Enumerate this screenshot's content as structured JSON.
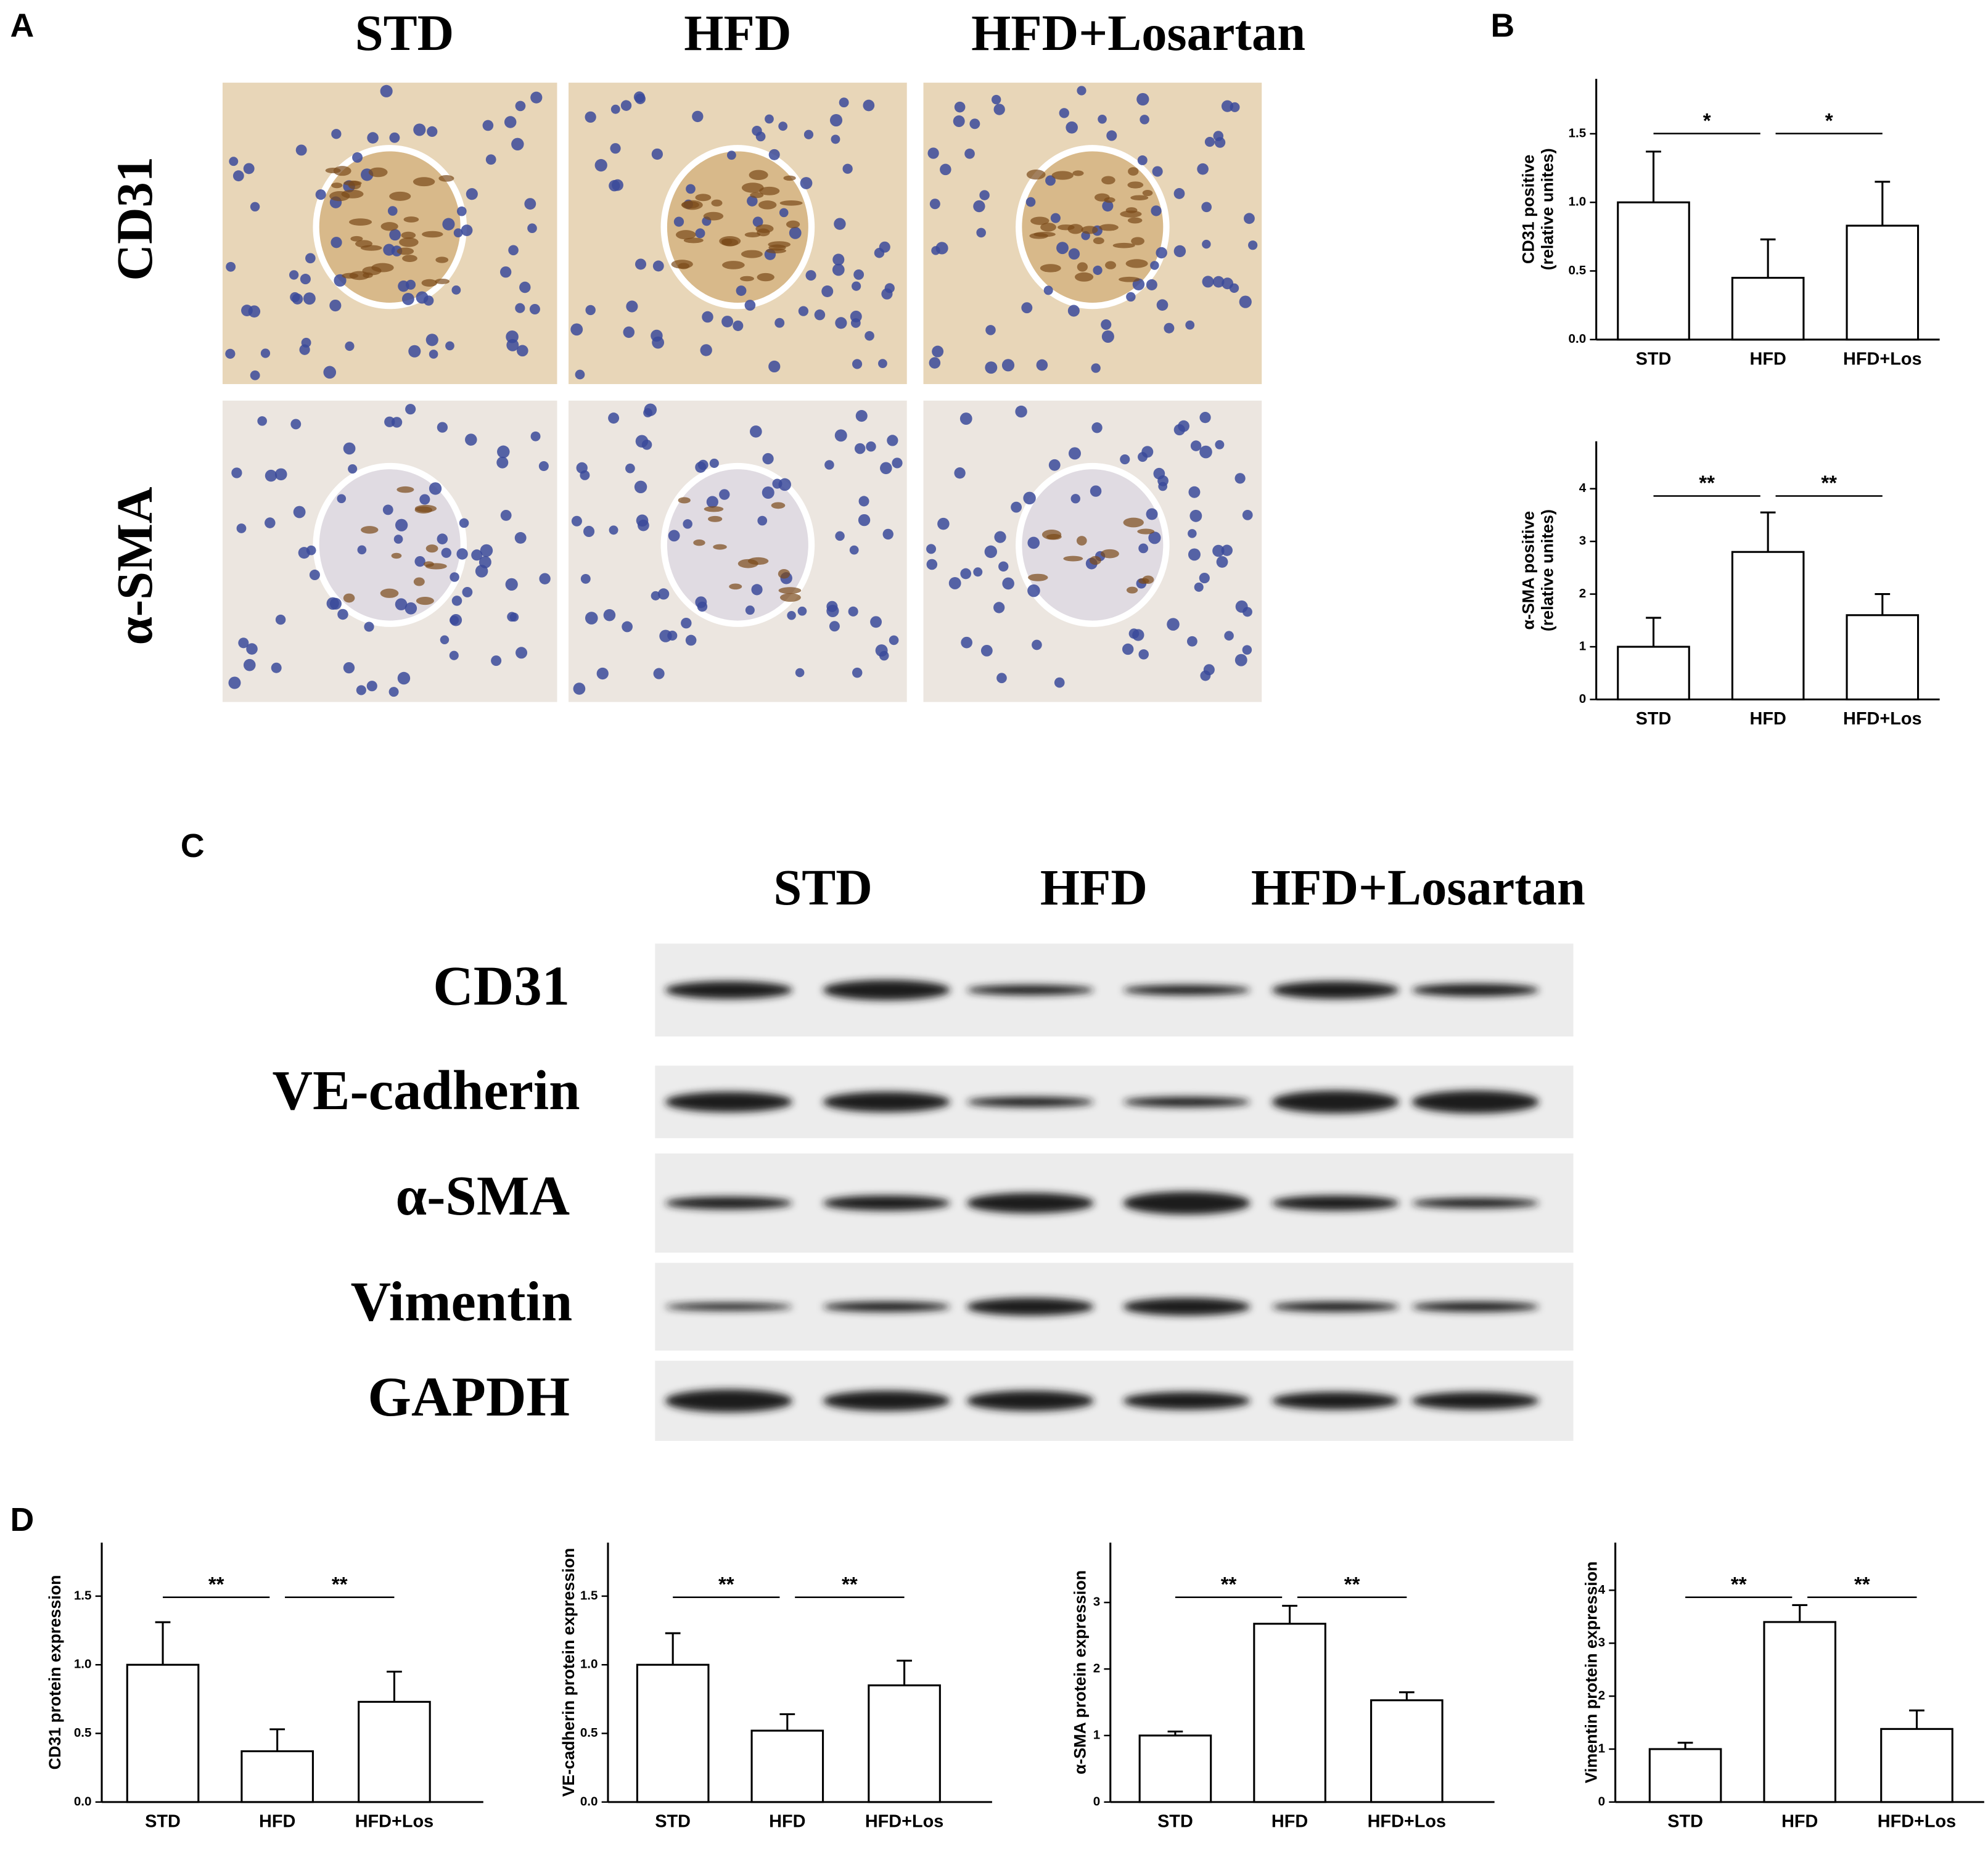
{
  "panel_labels": [
    "A",
    "B",
    "C",
    "D"
  ],
  "histology": {
    "columns": [
      "STD",
      "HFD",
      "HFD+Losartan"
    ],
    "rows": [
      "CD31",
      "α-SMA"
    ]
  },
  "blot": {
    "columns": [
      "STD",
      "HFD",
      "HFD+Losartan"
    ],
    "rows": [
      "CD31",
      "VE-cadherin",
      "α-SMA",
      "Vimentin",
      "GAPDH"
    ]
  },
  "chart_data": [
    {
      "type": "bar",
      "y_label": [
        "CD31 positive",
        "(relative unites)"
      ],
      "categories": [
        "STD",
        "HFD",
        "HFD+Los"
      ],
      "values": [
        1.0,
        0.45,
        0.83
      ],
      "errors": [
        0.37,
        0.28,
        0.32
      ],
      "ylim": [
        0,
        1.9
      ],
      "yticks": [
        {
          "value": 0,
          "label": "0.0"
        },
        {
          "value": 0.5,
          "label": "0.5"
        },
        {
          "value": 1,
          "label": "1.0"
        },
        {
          "value": 1.5,
          "label": "1.5"
        }
      ],
      "significance": [
        "*",
        "*"
      ]
    },
    {
      "type": "bar",
      "y_label": [
        "α-SMA positive",
        "(relative unites)"
      ],
      "categories": [
        "STD",
        "HFD",
        "HFD+Los"
      ],
      "values": [
        1.0,
        2.8,
        1.6
      ],
      "errors": [
        0.55,
        0.75,
        0.4
      ],
      "ylim": [
        0,
        4.9
      ],
      "yticks": [
        0,
        1,
        2,
        3,
        4
      ],
      "significance": [
        "**",
        "**"
      ]
    },
    {
      "type": "bar",
      "y_label": [
        "CD31 protein expression"
      ],
      "categories": [
        "STD",
        "HFD",
        "HFD+Los"
      ],
      "values": [
        1.0,
        0.37,
        0.73
      ],
      "errors": [
        0.31,
        0.16,
        0.22
      ],
      "ylim": [
        0,
        1.89
      ],
      "yticks": [
        {
          "value": 0,
          "label": "0.0"
        },
        {
          "value": 0.5,
          "label": "0.5"
        },
        {
          "value": 1,
          "label": "1.0"
        },
        {
          "value": 1.5,
          "label": "1.5"
        }
      ],
      "significance": [
        "**",
        "**"
      ]
    },
    {
      "type": "bar",
      "y_label": [
        "VE-cadherin protein expression"
      ],
      "categories": [
        "STD",
        "HFD",
        "HFD+Los"
      ],
      "values": [
        1.0,
        0.52,
        0.85
      ],
      "errors": [
        0.23,
        0.12,
        0.18
      ],
      "ylim": [
        0,
        1.89
      ],
      "yticks": [
        {
          "value": 0,
          "label": "0.0"
        },
        {
          "value": 0.5,
          "label": "0.5"
        },
        {
          "value": 1,
          "label": "1.0"
        },
        {
          "value": 1.5,
          "label": "1.5"
        }
      ],
      "significance": [
        "**",
        "**"
      ]
    },
    {
      "type": "bar",
      "y_label": [
        "α-SMA protein expression"
      ],
      "categories": [
        "STD",
        "HFD",
        "HFD+Los"
      ],
      "values": [
        1.0,
        2.68,
        1.53
      ],
      "errors": [
        0.06,
        0.27,
        0.12
      ],
      "ylim": [
        0,
        3.9
      ],
      "yticks": [
        0,
        1,
        2,
        3
      ],
      "significance": [
        "**",
        "**"
      ]
    },
    {
      "type": "bar",
      "y_label": [
        "Vimentin protein expression"
      ],
      "categories": [
        "STD",
        "HFD",
        "HFD+Los"
      ],
      "values": [
        1.0,
        3.4,
        1.38
      ],
      "errors": [
        0.12,
        0.32,
        0.35
      ],
      "ylim": [
        0,
        4.9
      ],
      "yticks": [
        0,
        1,
        2,
        3,
        4
      ],
      "significance": [
        "**",
        "**"
      ]
    }
  ]
}
